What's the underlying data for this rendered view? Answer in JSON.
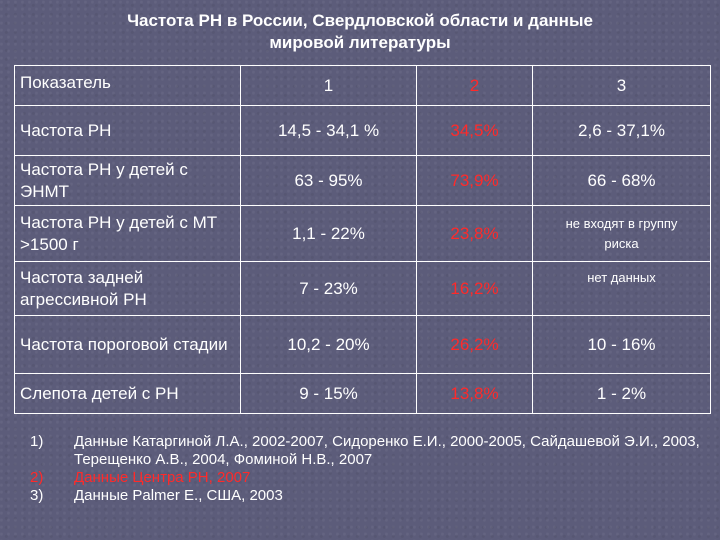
{
  "title_line1": "Частота РН в России, Свердловской области и данные",
  "title_line2": "мировой литературы",
  "accent_red": "#ff2a2a",
  "header": {
    "indicator": "Показатель",
    "col1": "1",
    "col2": "2",
    "col3": "3"
  },
  "rows": [
    {
      "label": "Частота РН",
      "c1": "14,5 - 34,1 %",
      "c2": "34,5%",
      "c3": "2,6 - 37,1%"
    },
    {
      "label": "Частота РН у детей с ЭНМТ",
      "c1": "63 - 95%",
      "c2": "73,9%",
      "c3": "66 - 68%"
    },
    {
      "label": "Частота РН у детей с МТ >1500 г",
      "c1": "1,1 - 22%",
      "c2": "23,8%",
      "c3": "не входят в группу риска"
    },
    {
      "label": "Частота задней агрессивной РН",
      "c1": "7 - 23%",
      "c2": "16,2%",
      "c3": "нет данных"
    },
    {
      "label": "Частота пороговой стадии",
      "c1": "10,2 - 20%",
      "c2": "26,2%",
      "c3": "10 - 16%"
    },
    {
      "label": "Слепота детей с РН",
      "c1": "9 - 15%",
      "c2": "13,8%",
      "c3": "1 - 2%"
    }
  ],
  "notes": [
    {
      "num": "1)",
      "text": "Данные Катаргиной Л.А., 2002-2007, Сидоренко Е.И., 2000-2005, Сайдашевой Э.И., 2003, Терещенко А.В., 2004, Фоминой Н.В., 2007"
    },
    {
      "num": "2)",
      "text": "Данные Центра РН, 2007"
    },
    {
      "num": "3)",
      "text": "Данные Palmer E., США, 2003"
    }
  ]
}
